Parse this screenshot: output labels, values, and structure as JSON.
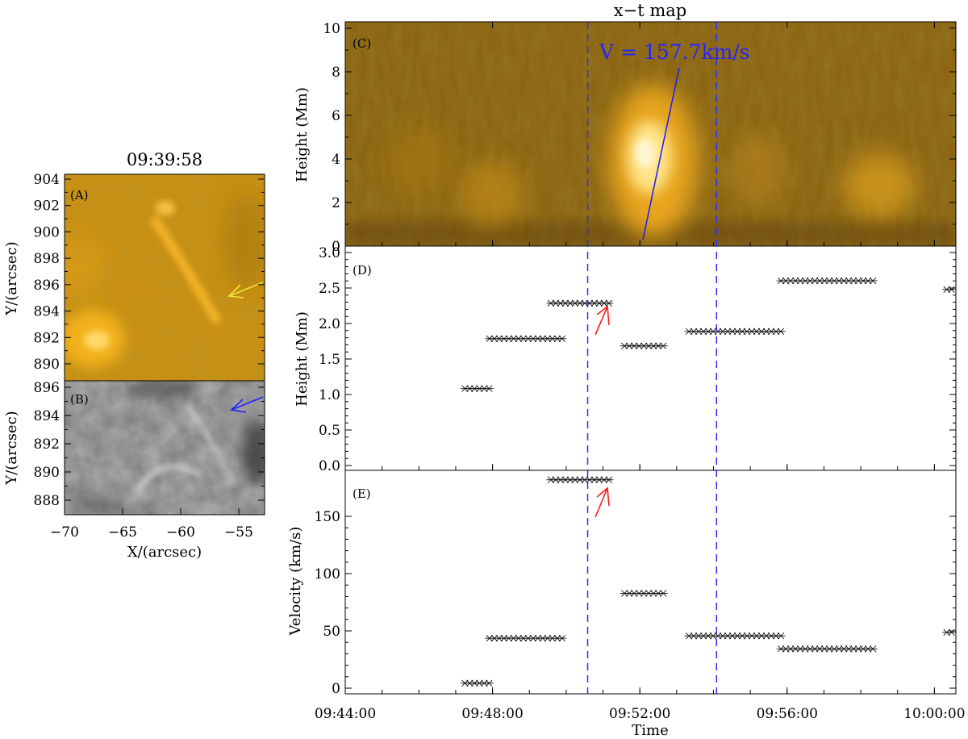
{
  "colors": {
    "aia_dark": "#5a3c0a",
    "aia_mid": "#b88415",
    "aia_bright": "#f4b21c",
    "guide_line": "#2b2bff",
    "yellow_arrow": "#f2e43a",
    "blue_arrow": "#2020ff",
    "red_arrow": "#ff1a1a"
  },
  "panel_a": {
    "title": "09:39:58",
    "tag": "(A)",
    "ylabel": "Y/(arcsec)",
    "yticks": [
      "904",
      "902",
      "900",
      "898",
      "896",
      "894",
      "892",
      "890"
    ],
    "arrow_color": "yellow"
  },
  "panel_b": {
    "tag": "(B)",
    "ylabel": "Y/(arcsec)",
    "xlabel": "X/(arcsec)",
    "yticks": [
      "896",
      "894",
      "892",
      "890",
      "888"
    ],
    "xticks": [
      "−70",
      "−65",
      "−60",
      "−55"
    ],
    "arrow_color": "blue"
  },
  "panel_c": {
    "title": "x−t map",
    "tag": "(C)",
    "ylabel": "Height (Mm)",
    "yticks": [
      "10",
      "8",
      "6",
      "4",
      "2",
      "0"
    ],
    "annotation": "V = 157.7km/s"
  },
  "panel_d": {
    "tag": "(D)",
    "ylabel": "Height (Mm)",
    "yticks": [
      "3.0",
      "2.5",
      "2.0",
      "1.5",
      "1.0",
      "0.5",
      "0.0"
    ]
  },
  "panel_e": {
    "tag": "(E)",
    "ylabel": "Velocity (km/s)",
    "yticks": [
      "150",
      "100",
      "50",
      "0"
    ],
    "xlabel": "Time",
    "xticks": [
      "09:44:00",
      "09:48:00",
      "09:52:00",
      "09:56:00",
      "10:00:00"
    ]
  },
  "chart_data": [
    {
      "type": "scatter",
      "panel": "D",
      "ylabel": "Height (Mm)",
      "xlabel": "Time",
      "ylim": [
        -0.05,
        3.05
      ],
      "xlim": [
        "09:44:00",
        "10:00:35"
      ],
      "guide_lines_x": [
        "09:50:35",
        "09:54:05"
      ],
      "segments": [
        {
          "t_start": "09:47:15",
          "t_end": "09:47:55",
          "value": 1.08
        },
        {
          "t_start": "09:47:55",
          "t_end": "09:49:55",
          "value": 1.77
        },
        {
          "t_start": "09:49:35",
          "t_end": "09:51:15",
          "value": 2.26
        },
        {
          "t_start": "09:51:35",
          "t_end": "09:52:45",
          "value": 1.67
        },
        {
          "t_start": "09:53:20",
          "t_end": "09:55:55",
          "value": 1.87
        },
        {
          "t_start": "09:55:50",
          "t_end": "09:58:20",
          "value": 2.57
        },
        {
          "t_start": "10:00:20",
          "t_end": "10:00:35",
          "value": 2.45
        }
      ]
    },
    {
      "type": "scatter",
      "panel": "E",
      "ylabel": "Velocity (km/s)",
      "xlabel": "Time",
      "ylim": [
        -3,
        186
      ],
      "xlim": [
        "09:44:00",
        "10:00:35"
      ],
      "guide_lines_x": [
        "09:50:35",
        "09:54:05"
      ],
      "segments": [
        {
          "t_start": "09:47:15",
          "t_end": "09:47:55",
          "value": 6
        },
        {
          "t_start": "09:47:55",
          "t_end": "09:49:55",
          "value": 44
        },
        {
          "t_start": "09:49:35",
          "t_end": "09:51:15",
          "value": 178
        },
        {
          "t_start": "09:51:35",
          "t_end": "09:52:45",
          "value": 82
        },
        {
          "t_start": "09:53:20",
          "t_end": "09:55:55",
          "value": 46
        },
        {
          "t_start": "09:55:50",
          "t_end": "09:58:20",
          "value": 35
        },
        {
          "t_start": "10:00:20",
          "t_end": "10:00:35",
          "value": 49
        }
      ]
    }
  ]
}
